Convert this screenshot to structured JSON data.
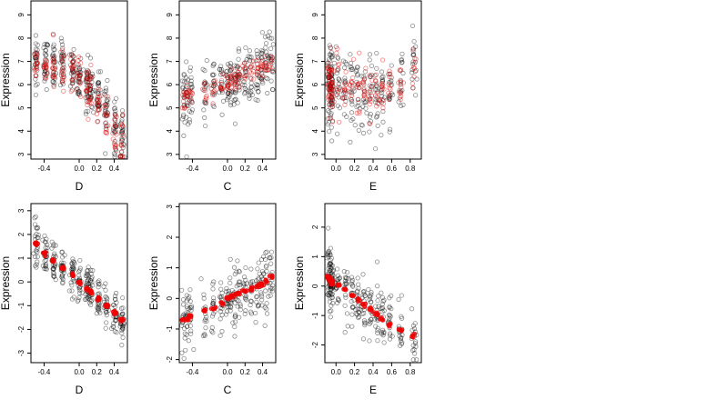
{
  "colors": {
    "observed": "#000000",
    "fitted": "#ff0000",
    "background": "#ffffff"
  },
  "chart_data": [
    {
      "type": "scatter",
      "panel": "top-left",
      "xlabel": "D",
      "ylabel": "Expression",
      "xticks": [
        -0.4,
        0.0,
        0.2,
        0.4
      ],
      "xtick_labels": [
        "-0.4",
        "0.0",
        "0.2",
        "0.4"
      ],
      "yticks": [
        3,
        4,
        5,
        6,
        7,
        8,
        9
      ],
      "ytick_labels": [
        "3",
        "4",
        "5",
        "6",
        "7",
        "8",
        "9"
      ],
      "xlim": [
        -0.55,
        0.55
      ],
      "ylim": [
        2.8,
        9.6
      ],
      "x_levels": [
        -0.49,
        -0.38,
        -0.29,
        -0.19,
        -0.08,
        0.0,
        0.09,
        0.13,
        0.22,
        0.31,
        0.41,
        0.49
      ],
      "series": [
        {
          "style": "black",
          "center": [
            7.0,
            6.9,
            6.8,
            6.8,
            6.7,
            6.3,
            6.0,
            5.9,
            5.6,
            4.9,
            4.2,
            3.6
          ],
          "spread": 1.0,
          "per_level": 28
        },
        {
          "style": "red",
          "center": [
            6.9,
            6.8,
            6.6,
            6.5,
            6.4,
            6.2,
            5.9,
            5.7,
            5.2,
            4.6,
            4.0,
            3.6
          ],
          "spread": 0.85,
          "per_level": 14
        }
      ]
    },
    {
      "type": "scatter",
      "panel": "top-middle",
      "xlabel": "C",
      "ylabel": "Expression",
      "xticks": [
        -0.4,
        0.0,
        0.2,
        0.4
      ],
      "xtick_labels": [
        "-0.4",
        "0.0",
        "0.2",
        "0.4"
      ],
      "yticks": [
        3,
        4,
        5,
        6,
        7,
        8,
        9
      ],
      "ytick_labels": [
        "3",
        "4",
        "5",
        "6",
        "7",
        "8",
        "9"
      ],
      "xlim": [
        -0.55,
        0.55
      ],
      "ylim": [
        2.8,
        9.6
      ],
      "x_levels": [
        -0.5,
        -0.46,
        -0.42,
        -0.26,
        -0.16,
        -0.07,
        0.0,
        0.04,
        0.09,
        0.13,
        0.2,
        0.27,
        0.34,
        0.39,
        0.44,
        0.5
      ],
      "series": [
        {
          "style": "black",
          "center": [
            5.4,
            5.5,
            5.6,
            5.7,
            5.8,
            5.9,
            6.0,
            6.1,
            6.2,
            6.3,
            6.4,
            6.5,
            6.6,
            6.7,
            6.9,
            7.0
          ],
          "spread": 1.2,
          "per_level": 18
        },
        {
          "style": "red",
          "center": [
            5.4,
            5.5,
            5.6,
            5.7,
            5.8,
            5.9,
            6.0,
            6.1,
            6.2,
            6.3,
            6.4,
            6.5,
            6.6,
            6.7,
            6.9,
            7.0
          ],
          "spread": 0.5,
          "per_level": 8
        }
      ]
    },
    {
      "type": "scatter",
      "panel": "top-right",
      "xlabel": "E",
      "ylabel": "Expression",
      "xticks": [
        0.0,
        0.2,
        0.4,
        0.6,
        0.8
      ],
      "xtick_labels": [
        "0.0",
        "0.2",
        "0.4",
        "0.6",
        "0.8"
      ],
      "yticks": [
        3,
        4,
        5,
        6,
        7,
        8,
        9
      ],
      "ytick_labels": [
        "3",
        "4",
        "5",
        "6",
        "7",
        "8",
        "9"
      ],
      "xlim": [
        -0.12,
        0.92
      ],
      "ylim": [
        2.8,
        9.6
      ],
      "x_levels": [
        -0.08,
        -0.07,
        -0.06,
        -0.05,
        -0.04,
        0.02,
        0.1,
        0.17,
        0.24,
        0.3,
        0.37,
        0.44,
        0.5,
        0.58,
        0.7,
        0.84
      ],
      "series": [
        {
          "style": "black",
          "center": [
            6.0,
            6.0,
            6.0,
            6.0,
            6.0,
            5.9,
            5.8,
            5.7,
            5.6,
            5.6,
            5.6,
            5.5,
            5.5,
            5.8,
            6.2,
            6.8
          ],
          "spread": 1.4,
          "per_level": 18
        },
        {
          "style": "red",
          "center": [
            6.1,
            6.0,
            6.0,
            5.9,
            5.9,
            5.9,
            5.8,
            5.7,
            5.6,
            5.6,
            5.6,
            5.6,
            5.5,
            5.8,
            6.2,
            6.6
          ],
          "spread": 1.1,
          "per_level": 10
        }
      ]
    },
    {
      "type": "scatter",
      "panel": "bottom-left",
      "xlabel": "D",
      "ylabel": "Expression",
      "xticks": [
        -0.4,
        0.0,
        0.2,
        0.4
      ],
      "xtick_labels": [
        "-0.4",
        "0.0",
        "0.2",
        "0.4"
      ],
      "yticks": [
        -3,
        -2,
        -1,
        0,
        1,
        2,
        3
      ],
      "ytick_labels": [
        "-3",
        "-2",
        "-1",
        "0",
        "1",
        "2",
        "3"
      ],
      "xlim": [
        -0.55,
        0.55
      ],
      "ylim": [
        -3.4,
        3.3
      ],
      "x_levels": [
        -0.49,
        -0.38,
        -0.29,
        -0.19,
        -0.08,
        0.0,
        0.09,
        0.13,
        0.22,
        0.31,
        0.41,
        0.49
      ],
      "series": [
        {
          "style": "black",
          "center": [
            1.6,
            1.2,
            0.9,
            0.6,
            0.3,
            0.0,
            -0.3,
            -0.4,
            -0.7,
            -1.0,
            -1.3,
            -1.6
          ],
          "spread": 0.8,
          "per_level": 26
        },
        {
          "style": "red-line",
          "center": [
            1.6,
            1.2,
            0.9,
            0.6,
            0.3,
            0.0,
            -0.3,
            -0.4,
            -0.7,
            -1.0,
            -1.3,
            -1.6
          ],
          "spread": 0.08,
          "per_level": 6
        }
      ]
    },
    {
      "type": "scatter",
      "panel": "bottom-middle",
      "xlabel": "C",
      "ylabel": "Expression",
      "xticks": [
        -0.4,
        0.0,
        0.2,
        0.4
      ],
      "xtick_labels": [
        "-0.4",
        "0.0",
        "0.2",
        "0.4"
      ],
      "yticks": [
        -2,
        -1,
        0,
        1,
        2,
        3
      ],
      "ytick_labels": [
        "-2",
        "-1",
        "0",
        "1",
        "2",
        "3"
      ],
      "xlim": [
        -0.55,
        0.55
      ],
      "ylim": [
        -2.1,
        3.1
      ],
      "x_levels": [
        -0.5,
        -0.46,
        -0.42,
        -0.26,
        -0.16,
        -0.07,
        0.0,
        0.04,
        0.09,
        0.13,
        0.2,
        0.27,
        0.34,
        0.39,
        0.44,
        0.5
      ],
      "series": [
        {
          "style": "black",
          "center": [
            -0.7,
            -0.65,
            -0.6,
            -0.4,
            -0.3,
            -0.15,
            0.0,
            0.05,
            0.1,
            0.15,
            0.25,
            0.3,
            0.4,
            0.45,
            0.6,
            0.7
          ],
          "spread": 0.9,
          "per_level": 16
        },
        {
          "style": "red-line",
          "center": [
            -0.7,
            -0.65,
            -0.6,
            -0.4,
            -0.3,
            -0.15,
            0.0,
            0.05,
            0.1,
            0.15,
            0.25,
            0.3,
            0.4,
            0.45,
            0.6,
            0.7
          ],
          "spread": 0.06,
          "per_level": 4
        }
      ]
    },
    {
      "type": "scatter",
      "panel": "bottom-right",
      "xlabel": "E",
      "ylabel": "Expression",
      "xticks": [
        0.0,
        0.2,
        0.4,
        0.6,
        0.8
      ],
      "xtick_labels": [
        "0.0",
        "0.2",
        "0.4",
        "0.6",
        "0.8"
      ],
      "yticks": [
        -2,
        -1,
        0,
        1,
        2
      ],
      "ytick_labels": [
        "-2",
        "-1",
        "0",
        "1",
        "2"
      ],
      "xlim": [
        -0.12,
        0.92
      ],
      "ylim": [
        -2.6,
        2.8
      ],
      "x_levels": [
        -0.08,
        -0.07,
        -0.06,
        -0.05,
        -0.04,
        0.02,
        0.1,
        0.17,
        0.24,
        0.3,
        0.37,
        0.44,
        0.5,
        0.58,
        0.7,
        0.84
      ],
      "series": [
        {
          "style": "black",
          "center": [
            0.3,
            0.25,
            0.2,
            0.15,
            0.1,
            0.05,
            -0.1,
            -0.3,
            -0.5,
            -0.65,
            -0.8,
            -0.95,
            -1.1,
            -1.3,
            -1.5,
            -1.7
          ],
          "spread": 0.9,
          "per_level": 18
        },
        {
          "style": "red-line",
          "center": [
            0.3,
            0.25,
            0.2,
            0.15,
            0.1,
            0.05,
            -0.1,
            -0.3,
            -0.5,
            -0.65,
            -0.8,
            -0.95,
            -1.1,
            -1.3,
            -1.5,
            -1.7
          ],
          "spread": 0.06,
          "per_level": 4
        }
      ]
    }
  ]
}
